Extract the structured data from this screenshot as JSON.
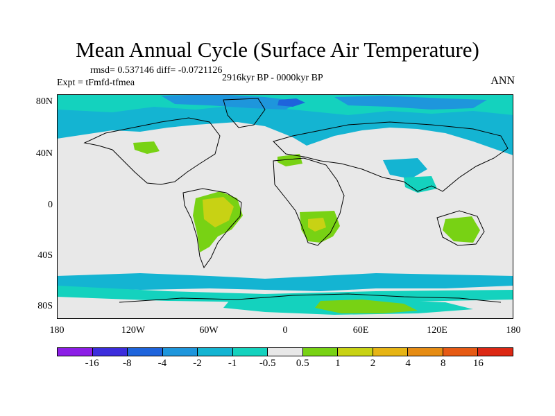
{
  "title": "Mean Annual Cycle (Surface Air Temperature)",
  "stats": "rmsd= 0.537146  diff= -0.0721126",
  "experiment": "Expt = tFmfd-tfmea",
  "period": "2916kyr BP - 0000kyr BP",
  "season": "ANN",
  "lat_ticks": [
    "80N",
    "40N",
    "0",
    "40S",
    "80S"
  ],
  "lon_ticks": [
    "180",
    "120W",
    "60W",
    "0",
    "60E",
    "120E",
    "180"
  ],
  "colorbar": {
    "colors": [
      "#8c1ee6",
      "#3c2ddc",
      "#1e64dc",
      "#1e96dc",
      "#14b4d2",
      "#14d2be",
      "#e8e8e8",
      "#78d214",
      "#c8d214",
      "#e6b414",
      "#e68c14",
      "#e65a14",
      "#dc2814"
    ],
    "labels": [
      "-16",
      "-8",
      "-4",
      "-2",
      "-1",
      "-0.5",
      "0.5",
      "1",
      "2",
      "4",
      "8",
      "16"
    ]
  },
  "colors": {
    "neutral": "#e8e8e8",
    "cool_light": "#14d2be",
    "cool": "#14b4d2",
    "cool_mid": "#1e96dc",
    "cool_dark": "#1e64dc",
    "warm_light": "#78d214",
    "warm": "#c8d214",
    "coast": "#000000"
  }
}
